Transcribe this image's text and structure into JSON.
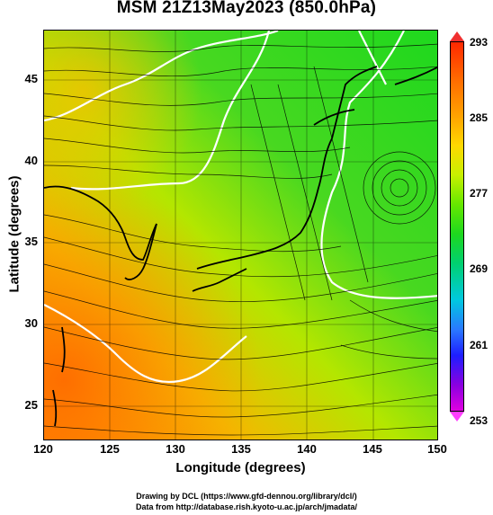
{
  "title": "MSM 21Z13May2023 (850.0hPa)",
  "x_axis": {
    "label": "Longitude (degrees)",
    "range": [
      120,
      150
    ],
    "ticks": [
      "120",
      "125",
      "130",
      "135",
      "140",
      "145",
      "150"
    ]
  },
  "y_axis": {
    "label": "Latitude  (degrees)",
    "range": [
      22.4,
      47.6
    ],
    "ticks": [
      "45",
      "40",
      "35",
      "30",
      "25"
    ]
  },
  "colorbar": {
    "labels": [
      "293",
      "285",
      "277",
      "269",
      "261",
      "253"
    ],
    "range": [
      253,
      293
    ],
    "colors": [
      "#ff2800",
      "#ffd800",
      "#1ed81e",
      "#00c8e0",
      "#1e1eff",
      "#e000e0"
    ]
  },
  "credits": {
    "line1": "Drawing by DCL (https://www.gfd-dennou.org/library/dcl/)",
    "line2": "Data from http://database.rish.kyoto-u.ac.jp/arch/jmadata/"
  }
}
